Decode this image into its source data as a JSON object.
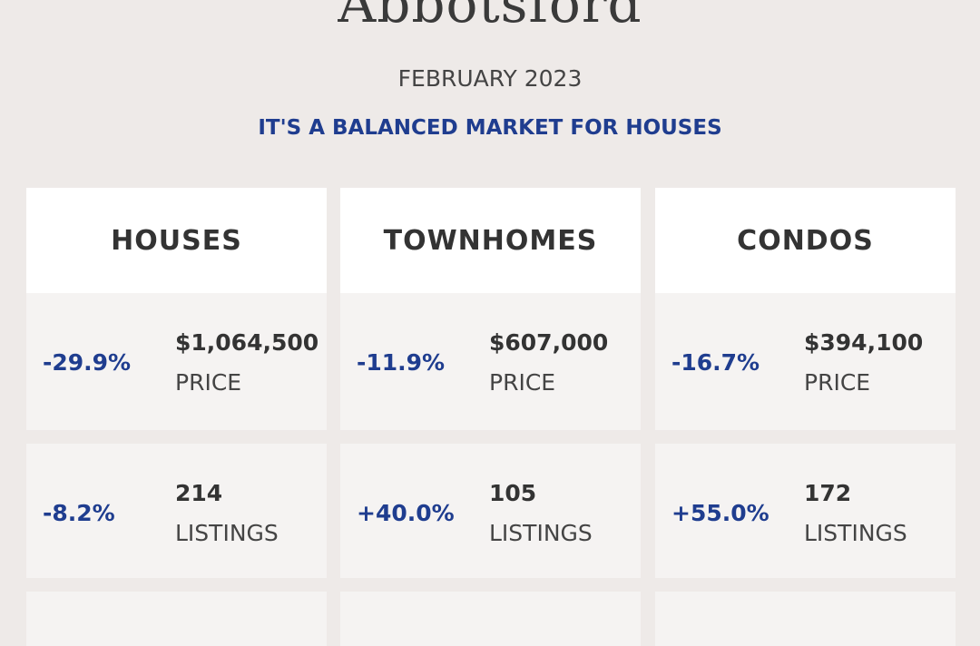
{
  "header": {
    "title": "Abbotsford",
    "subtitle": "FEBRUARY 2023",
    "tagline": "IT'S A BALANCED MARKET FOR HOUSES"
  },
  "columns": [
    {
      "name": "HOUSES",
      "rows": [
        {
          "change": "-29.9%",
          "value": "$1,064,500",
          "label": "PRICE"
        },
        {
          "change": "-8.2%",
          "value": "214",
          "label": "LISTINGS"
        }
      ]
    },
    {
      "name": "TOWNHOMES",
      "rows": [
        {
          "change": "-11.9%",
          "value": "$607,000",
          "label": "PRICE"
        },
        {
          "change": "+40.0%",
          "value": "105",
          "label": "LISTINGS"
        }
      ]
    },
    {
      "name": "CONDOS",
      "rows": [
        {
          "change": "-16.7%",
          "value": "$394,100",
          "label": "PRICE"
        },
        {
          "change": "+55.0%",
          "value": "172",
          "label": "LISTINGS"
        }
      ]
    }
  ]
}
